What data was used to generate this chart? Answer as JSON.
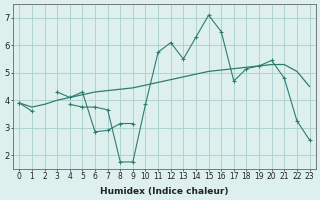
{
  "xlabel": "Humidex (Indice chaleur)",
  "x": [
    0,
    1,
    2,
    3,
    4,
    5,
    6,
    7,
    8,
    9,
    10,
    11,
    12,
    13,
    14,
    15,
    16,
    17,
    18,
    19,
    20,
    21,
    22,
    23
  ],
  "line1": [
    3.9,
    3.6,
    null,
    4.3,
    4.1,
    4.3,
    2.85,
    2.9,
    3.15,
    3.15,
    null,
    null,
    null,
    null,
    null,
    null,
    null,
    null,
    null,
    null,
    null,
    null,
    null,
    null
  ],
  "line2": [
    3.9,
    null,
    null,
    null,
    3.85,
    3.75,
    3.75,
    3.65,
    1.75,
    1.75,
    3.85,
    5.75,
    6.1,
    5.5,
    6.3,
    7.1,
    6.5,
    4.7,
    5.15,
    5.25,
    5.45,
    4.8,
    3.25,
    2.55
  ],
  "line3": [
    3.9,
    3.75,
    3.85,
    4.0,
    4.1,
    4.2,
    4.3,
    4.35,
    4.4,
    4.45,
    4.55,
    4.65,
    4.75,
    4.85,
    4.95,
    5.05,
    5.1,
    5.15,
    5.2,
    5.25,
    5.3,
    5.3,
    5.05,
    4.5
  ],
  "line_color": "#2d7d6f",
  "bg_color": "#ddf0ee",
  "grid_color": "#aacece",
  "ylim": [
    1.5,
    7.5
  ],
  "xlim": [
    -0.5,
    23.5
  ],
  "yticks": [
    2,
    3,
    4,
    5,
    6,
    7
  ],
  "xticks": [
    0,
    1,
    2,
    3,
    4,
    5,
    6,
    7,
    8,
    9,
    10,
    11,
    12,
    13,
    14,
    15,
    16,
    17,
    18,
    19,
    20,
    21,
    22,
    23
  ],
  "tick_fontsize": 5.5,
  "xlabel_fontsize": 6.5
}
